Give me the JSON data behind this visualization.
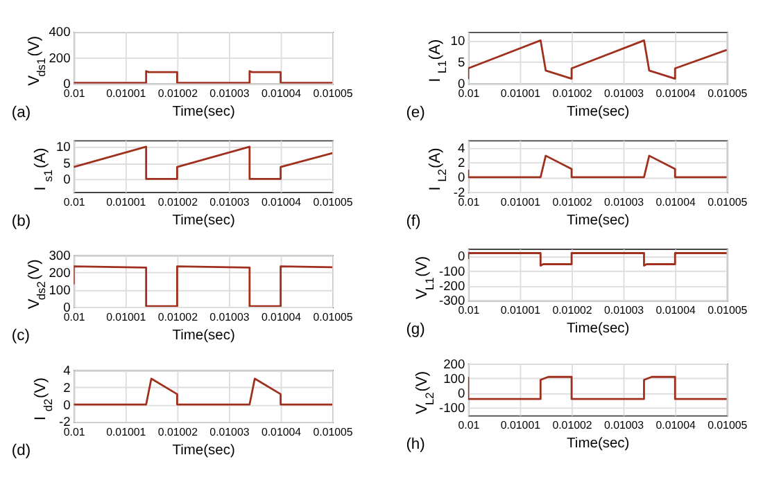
{
  "chart_data": [
    {
      "type": "line",
      "ylabel": "V$_{ds1}$(V)",
      "xlabel": "Time(sec)",
      "annotations": [
        "(a)"
      ],
      "grid": true,
      "xlim": [
        0.01,
        0.01005
      ],
      "xticks": [
        0.01,
        0.01001,
        0.01002,
        0.01003,
        0.01004,
        0.01005
      ],
      "ylim": [
        0,
        400
      ],
      "yticks": [
        0,
        200,
        400
      ],
      "x": [
        0.01,
        0.010014,
        0.010014,
        0.0100145,
        0.01002,
        0.01002,
        0.010034,
        0.010034,
        0.0100345,
        0.01004,
        0.01004,
        0.01005
      ],
      "series": [
        {
          "color": "#a0301e",
          "values": [
            5,
            5,
            95,
            88,
            88,
            5,
            5,
            95,
            88,
            88,
            5,
            5
          ]
        }
      ]
    },
    {
      "type": "line",
      "ylabel": "I$_{s1}$(A)",
      "xlabel": "Time(sec)",
      "annotations": [
        "(b)"
      ],
      "grid": true,
      "xlim": [
        0.01,
        0.01005
      ],
      "xticks": [
        0.01,
        0.01001,
        0.01002,
        0.01003,
        0.01004,
        0.01005
      ],
      "ylim": [
        -4,
        12
      ],
      "yticks": [
        0,
        5,
        10
      ],
      "x": [
        0.01,
        0.010014,
        0.010014,
        0.01002,
        0.01002,
        0.010034,
        0.010034,
        0.01004,
        0.01004,
        0.01005
      ],
      "series": [
        {
          "color": "#a0301e",
          "values": [
            3.7,
            10,
            0,
            0,
            3.7,
            10,
            0,
            0,
            3.7,
            8
          ]
        }
      ]
    },
    {
      "type": "line",
      "ylabel": "V$_{ds2}$(V)",
      "xlabel": "Time(sec)",
      "annotations": [
        "(c)"
      ],
      "grid": true,
      "xlim": [
        0.01,
        0.01005
      ],
      "xticks": [
        0.01,
        0.01001,
        0.01002,
        0.01003,
        0.01004,
        0.01005
      ],
      "ylim": [
        0,
        300
      ],
      "yticks": [
        0,
        100,
        200,
        300
      ],
      "x": [
        0.01,
        0.01,
        0.010014,
        0.010014,
        0.01002,
        0.01002,
        0.010034,
        0.010034,
        0.01004,
        0.01004,
        0.01005
      ],
      "series": [
        {
          "color": "#a0301e",
          "values": [
            130,
            235,
            228,
            3,
            3,
            235,
            228,
            3,
            3,
            235,
            230
          ]
        }
      ]
    },
    {
      "type": "line",
      "ylabel": "I$_{d2}$(V)",
      "xlabel": "Time(sec)",
      "annotations": [
        "(d)"
      ],
      "grid": true,
      "xlim": [
        0.01,
        0.01005
      ],
      "xticks": [
        0.01,
        0.01001,
        0.01002,
        0.01003,
        0.01004,
        0.01005
      ],
      "ylim": [
        -2,
        4
      ],
      "yticks": [
        -2,
        0,
        2,
        4
      ],
      "x": [
        0.01,
        0.010014,
        0.010015,
        0.01002,
        0.01002,
        0.010034,
        0.010035,
        0.01004,
        0.01004,
        0.01005
      ],
      "series": [
        {
          "color": "#a0301e",
          "values": [
            0,
            0,
            3,
            1.2,
            0,
            0,
            3,
            1.2,
            0,
            0
          ]
        }
      ]
    },
    {
      "type": "line",
      "ylabel": "I$_{L1}$(A)",
      "xlabel": "Time(sec)",
      "annotations": [
        "(e)"
      ],
      "grid": true,
      "xlim": [
        0.01,
        0.01005
      ],
      "xticks": [
        0.01,
        0.01001,
        0.01002,
        0.01003,
        0.01004,
        0.01005
      ],
      "ylim": [
        0,
        12
      ],
      "yticks": [
        0,
        5,
        10
      ],
      "x": [
        0.01,
        0.01,
        0.010014,
        0.010015,
        0.01002,
        0.01002,
        0.010034,
        0.010035,
        0.01004,
        0.01004,
        0.01005
      ],
      "series": [
        {
          "color": "#a0301e",
          "values": [
            1,
            3.5,
            10,
            3,
            1.1,
            3.5,
            10,
            3,
            1.1,
            3.5,
            7.8
          ]
        }
      ]
    },
    {
      "type": "line",
      "ylabel": "I$_{L2}$(A)",
      "xlabel": "Time(sec)",
      "annotations": [
        "(f)"
      ],
      "grid": true,
      "xlim": [
        0.01,
        0.01005
      ],
      "xticks": [
        0.01,
        0.01001,
        0.01002,
        0.01003,
        0.01004,
        0.01005
      ],
      "ylim": [
        -2,
        5
      ],
      "yticks": [
        -2,
        0,
        2,
        4
      ],
      "x": [
        0.01,
        0.01,
        0.010014,
        0.010015,
        0.01002,
        0.01002,
        0.010034,
        0.010035,
        0.01004,
        0.01004,
        0.01005
      ],
      "series": [
        {
          "color": "#a0301e",
          "values": [
            1,
            0,
            0,
            2.9,
            1.1,
            0,
            0,
            2.9,
            1.1,
            0,
            0
          ]
        }
      ]
    },
    {
      "type": "line",
      "ylabel": "V$_{L1}$(V)",
      "xlabel": "Time(sec)",
      "annotations": [
        "(g)"
      ],
      "grid": true,
      "xlim": [
        0.01,
        0.01005
      ],
      "xticks": [
        0.01,
        0.01001,
        0.01002,
        0.01003,
        0.01004,
        0.01005
      ],
      "ylim": [
        -300,
        50
      ],
      "yticks": [
        -300,
        -200,
        -100,
        0
      ],
      "x": [
        0.01,
        0.01,
        0.010014,
        0.010014,
        0.0100145,
        0.01002,
        0.01002,
        0.010034,
        0.010034,
        0.0100345,
        0.01004,
        0.01004,
        0.01005
      ],
      "series": [
        {
          "color": "#a0301e",
          "values": [
            -20,
            20,
            20,
            -65,
            -55,
            -55,
            20,
            20,
            -65,
            -55,
            -55,
            20,
            20
          ]
        }
      ]
    },
    {
      "type": "line",
      "ylabel": "V$_{L2}$(V)",
      "xlabel": "Time(sec)",
      "annotations": [
        "(h)"
      ],
      "grid": true,
      "xlim": [
        0.01,
        0.01005
      ],
      "xticks": [
        0.01,
        0.01001,
        0.01002,
        0.01003,
        0.01004,
        0.01005
      ],
      "ylim": [
        -150,
        200
      ],
      "yticks": [
        -100,
        0,
        100,
        200
      ],
      "x": [
        0.01,
        0.01,
        0.010014,
        0.010014,
        0.0100155,
        0.01002,
        0.01002,
        0.010034,
        0.010034,
        0.0100355,
        0.01004,
        0.01004,
        0.01005
      ],
      "series": [
        {
          "color": "#a0301e",
          "values": [
            110,
            -40,
            -40,
            90,
            110,
            110,
            -40,
            -40,
            90,
            110,
            110,
            -40,
            -40
          ]
        }
      ]
    }
  ]
}
